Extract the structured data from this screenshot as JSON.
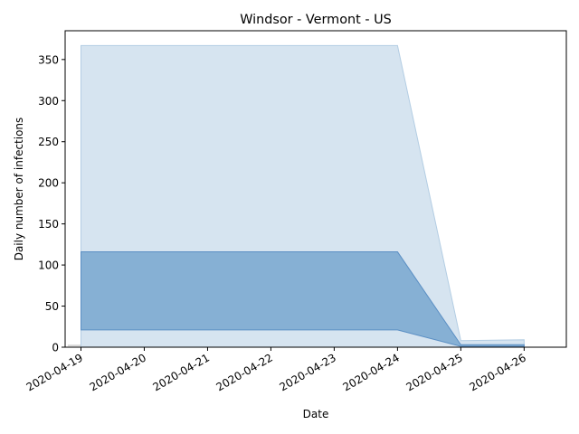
{
  "chart_data": {
    "type": "area",
    "title": "Windsor - Vermont - US",
    "xlabel": "Date",
    "ylabel": "Daily number of infections",
    "x": [
      "2020-04-19",
      "2020-04-20",
      "2020-04-21",
      "2020-04-22",
      "2020-04-23",
      "2020-04-24",
      "2020-04-25",
      "2020-04-26"
    ],
    "x_ticks": [
      "2020-04-19",
      "2020-04-20",
      "2020-04-21",
      "2020-04-22",
      "2020-04-23",
      "2020-04-24",
      "2020-04-25",
      "2020-04-26"
    ],
    "y_ticks": [
      0,
      50,
      100,
      150,
      200,
      250,
      300,
      350
    ],
    "ylim": [
      0,
      385
    ],
    "xlim": [
      "2020-04-18 18:00",
      "2020-04-26 16:00"
    ],
    "series": [
      {
        "band": "outer",
        "x": [
          "2020-04-19",
          "2020-04-24",
          "2020-04-25",
          "2020-04-26"
        ],
        "lower": [
          0,
          0,
          0,
          0
        ],
        "upper": [
          367,
          367,
          8,
          9
        ],
        "color": "#d6e4f0"
      },
      {
        "band": "inner",
        "x": [
          "2020-04-19",
          "2020-04-24",
          "2020-04-25",
          "2020-04-26"
        ],
        "lower": [
          21,
          21,
          1,
          1
        ],
        "upper": [
          116,
          116,
          3,
          3
        ],
        "color": "#86b0d4"
      }
    ],
    "observed_marks": [
      {
        "x_start": "2020-04-18 19:00",
        "x_end": "2020-04-19 06:00",
        "value": 2,
        "color": "#d9d9d9"
      },
      {
        "x_start": "2020-04-20 19:00",
        "x_end": "2020-04-21 06:00",
        "value": 1,
        "color": "#e6e6e6"
      }
    ],
    "grid": false,
    "legend": "none"
  }
}
